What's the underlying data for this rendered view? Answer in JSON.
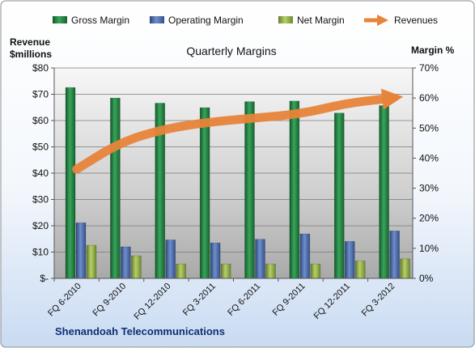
{
  "chart_data": {
    "type": "bar",
    "title": "Quarterly Margins",
    "left_axis_title_line1": "Revenue",
    "left_axis_title_line2": "$millions",
    "right_axis_title": "Margin %",
    "categories": [
      "FQ 6-2010",
      "FQ 9-2010",
      "FQ 12-2010",
      "FQ 3-2011",
      "FQ 6-2011",
      "FQ 9-2011",
      "FQ 12-2011",
      "FQ 3-2012"
    ],
    "left_ticks": [
      "$-",
      "$10",
      "$20",
      "$30",
      "$40",
      "$50",
      "$60",
      "$70",
      "$80"
    ],
    "right_ticks": [
      "0%",
      "10%",
      "20%",
      "30%",
      "40%",
      "50%",
      "60%",
      "70%"
    ],
    "ylim_left": [
      0,
      80
    ],
    "ylim_right": [
      0,
      70
    ],
    "grid": true,
    "legend_position": "top",
    "series": [
      {
        "name": "Gross Margin",
        "axis": "right",
        "kind": "bar",
        "color": "#1e7a3c",
        "values": [
          63.5,
          60.0,
          58.3,
          56.8,
          58.8,
          59.0,
          55.0,
          57.5
        ]
      },
      {
        "name": "Operating Margin",
        "axis": "right",
        "kind": "bar",
        "color": "#3f5f9c",
        "values": [
          18.5,
          10.5,
          12.8,
          11.8,
          13.0,
          14.8,
          12.3,
          15.8
        ]
      },
      {
        "name": "Net Margin",
        "axis": "right",
        "kind": "bar",
        "color": "#8aa440",
        "values": [
          11.0,
          7.5,
          4.8,
          4.8,
          4.8,
          4.8,
          5.8,
          6.5
        ]
      },
      {
        "name": "Revenues",
        "axis": "left",
        "kind": "line",
        "color": "#e8843a",
        "values": [
          41.5,
          52.0,
          57.0,
          59.5,
          61.0,
          62.5,
          66.5,
          68.5
        ]
      }
    ],
    "footer": "Shenandoah Telecommunications"
  }
}
